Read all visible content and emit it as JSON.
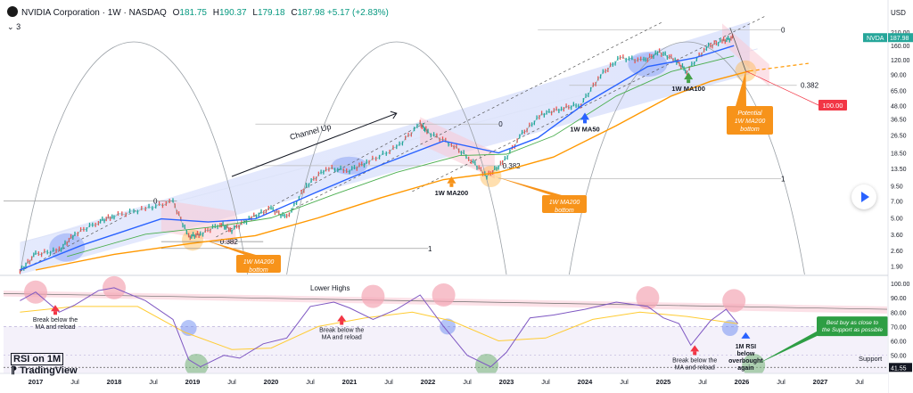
{
  "header": {
    "title": "NVIDIA Corporation · 1W · NASDAQ",
    "open_label": "O",
    "open": "181.75",
    "high_label": "H",
    "high": "190.37",
    "low_label": "L",
    "low": "179.18",
    "close_label": "C",
    "close": "187.98",
    "change": "+5.17 (+2.83%)",
    "sub_indicator": "3"
  },
  "watermark": {
    "rsi_box": "RSI on 1M",
    "brand": "TradingView"
  },
  "chart_data": [
    {
      "type": "line",
      "title": "NVIDIA Corporation · 1W · NASDAQ",
      "price_axis_title": "USD",
      "scale": "log",
      "ylim": [
        1.6,
        280
      ],
      "y_ticks": [
        "210.00",
        "160.00",
        "120.00",
        "90.00",
        "65.00",
        "48.00",
        "36.50",
        "26.50",
        "18.50",
        "13.50",
        "9.50",
        "7.00",
        "5.00",
        "3.60",
        "2.60",
        "1.90"
      ],
      "x_ticks": [
        "2017",
        "Jul",
        "2018",
        "Jul",
        "2019",
        "Jul",
        "2020",
        "Jul",
        "2021",
        "Jul",
        "2022",
        "Jul",
        "2023",
        "Jul",
        "2024",
        "Jul",
        "2025",
        "Jul",
        "2026",
        "Jul",
        "2027",
        "Jul"
      ],
      "price_path": [
        [
          2016.8,
          1.7
        ],
        [
          2017.0,
          2.4
        ],
        [
          2017.3,
          2.6
        ],
        [
          2017.5,
          3.6
        ],
        [
          2017.8,
          4.6
        ],
        [
          2018.0,
          5.2
        ],
        [
          2018.4,
          6.0
        ],
        [
          2018.75,
          6.9
        ],
        [
          2018.95,
          3.4
        ],
        [
          2019.1,
          3.6
        ],
        [
          2019.35,
          4.4
        ],
        [
          2019.5,
          3.9
        ],
        [
          2019.75,
          5.0
        ],
        [
          2020.0,
          6.0
        ],
        [
          2020.2,
          5.0
        ],
        [
          2020.45,
          9.5
        ],
        [
          2020.7,
          13.5
        ],
        [
          2021.0,
          13.0
        ],
        [
          2021.25,
          15.5
        ],
        [
          2021.6,
          20.5
        ],
        [
          2021.9,
          33.0
        ],
        [
          2022.0,
          28.0
        ],
        [
          2022.3,
          22.0
        ],
        [
          2022.55,
          16.0
        ],
        [
          2022.75,
          11.5
        ],
        [
          2022.95,
          15.0
        ],
        [
          2023.2,
          27.0
        ],
        [
          2023.45,
          40.0
        ],
        [
          2023.7,
          45.0
        ],
        [
          2023.95,
          49.0
        ],
        [
          2024.2,
          88.0
        ],
        [
          2024.45,
          125.0
        ],
        [
          2024.75,
          118.0
        ],
        [
          2024.95,
          140.0
        ],
        [
          2025.15,
          120.0
        ],
        [
          2025.3,
          95.0
        ],
        [
          2025.55,
          155.0
        ],
        [
          2025.75,
          175.0
        ],
        [
          2025.9,
          188.0
        ]
      ],
      "series": [
        {
          "name": "1W MA50",
          "color": "#2962ff",
          "values": [
            [
              2016.8,
              1.75
            ],
            [
              2017.6,
              2.9
            ],
            [
              2018.6,
              4.9
            ],
            [
              2019.2,
              4.6
            ],
            [
              2019.8,
              4.9
            ],
            [
              2020.6,
              8.5
            ],
            [
              2021.4,
              14.5
            ],
            [
              2022.2,
              23.5
            ],
            [
              2022.9,
              18.5
            ],
            [
              2023.4,
              25.0
            ],
            [
              2024.0,
              50.0
            ],
            [
              2024.8,
              105.0
            ],
            [
              2025.4,
              125.0
            ],
            [
              2025.9,
              160.0
            ]
          ]
        },
        {
          "name": "1W MA100",
          "color": "#4caf50",
          "values": [
            [
              2017.4,
              2.3
            ],
            [
              2018.4,
              3.6
            ],
            [
              2019.3,
              4.2
            ],
            [
              2020.0,
              5.0
            ],
            [
              2020.8,
              8.0
            ],
            [
              2021.6,
              12.5
            ],
            [
              2022.4,
              17.5
            ],
            [
              2023.0,
              18.0
            ],
            [
              2023.6,
              26.0
            ],
            [
              2024.4,
              58.0
            ],
            [
              2025.1,
              95.0
            ],
            [
              2025.9,
              130.0
            ]
          ]
        },
        {
          "name": "1W MA200",
          "color": "#ff9800",
          "values": [
            [
              2017.0,
              1.75
            ],
            [
              2018.0,
              2.4
            ],
            [
              2019.0,
              3.0
            ],
            [
              2019.8,
              3.5
            ],
            [
              2020.6,
              5.0
            ],
            [
              2021.4,
              7.5
            ],
            [
              2022.2,
              10.8
            ],
            [
              2022.9,
              12.5
            ],
            [
              2023.6,
              17.0
            ],
            [
              2024.4,
              32.0
            ],
            [
              2025.1,
              58.0
            ],
            [
              2025.6,
              78.0
            ],
            [
              2026.1,
              96.0
            ]
          ]
        }
      ],
      "channel": {
        "name": "Channel Up",
        "lower": [
          [
            2016.8,
            1.6
          ],
          [
            2026.1,
            90.0
          ]
        ],
        "upper": [
          [
            2016.8,
            3.0
          ],
          [
            2026.1,
            260.0
          ]
        ]
      },
      "fib_levels": [
        {
          "level": "0",
          "ratio": 0
        },
        {
          "level": "0.382",
          "ratio": 0.382
        },
        {
          "level": "1",
          "ratio": 1
        }
      ],
      "price_labels": [
        {
          "text": "NVDA",
          "value": 187.98,
          "color": "#26a69a"
        },
        {
          "text": "187.98",
          "value": 187.98,
          "color": "#26a69a"
        },
        {
          "text": "100.00",
          "value": 100.0,
          "color": "#f23645"
        }
      ],
      "annotations": [
        {
          "text": "Channel Up"
        },
        {
          "text": "1W MA200 bottom"
        },
        {
          "text": "1W MA200"
        },
        {
          "text": "1W MA200 bottom"
        },
        {
          "text": "1W MA50"
        },
        {
          "text": "1W MA100"
        },
        {
          "text": "Potential 1W MA200 bottom"
        }
      ]
    },
    {
      "type": "line",
      "title": "RSI on 1M",
      "ylim": [
        38,
        105
      ],
      "y_ticks": [
        "100.00",
        "90.00",
        "80.00",
        "70.00",
        "60.00",
        "50.00",
        "41.55"
      ],
      "support_value": 41.55,
      "rsi": [
        [
          2016.8,
          88
        ],
        [
          2017.0,
          94
        ],
        [
          2017.3,
          80
        ],
        [
          2017.5,
          85
        ],
        [
          2017.8,
          95
        ],
        [
          2018.0,
          97
        ],
        [
          2018.4,
          88
        ],
        [
          2018.75,
          75
        ],
        [
          2018.95,
          47
        ],
        [
          2019.1,
          42
        ],
        [
          2019.4,
          50
        ],
        [
          2019.6,
          48
        ],
        [
          2019.9,
          58
        ],
        [
          2020.2,
          62
        ],
        [
          2020.5,
          84
        ],
        [
          2020.8,
          87
        ],
        [
          2021.0,
          83
        ],
        [
          2021.3,
          75
        ],
        [
          2021.6,
          82
        ],
        [
          2021.9,
          92
        ],
        [
          2022.2,
          70
        ],
        [
          2022.5,
          50
        ],
        [
          2022.8,
          42
        ],
        [
          2023.0,
          52
        ],
        [
          2023.3,
          76
        ],
        [
          2023.6,
          78
        ],
        [
          2024.0,
          82
        ],
        [
          2024.4,
          87
        ],
        [
          2024.8,
          84
        ],
        [
          2025.0,
          76
        ],
        [
          2025.2,
          72
        ],
        [
          2025.35,
          57
        ],
        [
          2025.6,
          74
        ],
        [
          2025.8,
          82
        ],
        [
          2025.95,
          72
        ]
      ],
      "ma": [
        [
          2016.8,
          80
        ],
        [
          2017.5,
          84
        ],
        [
          2018.3,
          84
        ],
        [
          2018.9,
          66
        ],
        [
          2019.5,
          54
        ],
        [
          2020.0,
          55
        ],
        [
          2020.6,
          70
        ],
        [
          2021.2,
          76
        ],
        [
          2021.8,
          80
        ],
        [
          2022.3,
          74
        ],
        [
          2022.9,
          60
        ],
        [
          2023.5,
          62
        ],
        [
          2024.1,
          75
        ],
        [
          2024.7,
          80
        ],
        [
          2025.3,
          77
        ],
        [
          2025.95,
          72
        ]
      ],
      "annotations": [
        {
          "text": "Lower Highs"
        },
        {
          "text": "Break below the MA and reload"
        },
        {
          "text": "Break below the MA and reload"
        },
        {
          "text": "Break below the MA and reload"
        },
        {
          "text": "1M RSI below overbought again"
        },
        {
          "text": "Best buy as close to the Support as possible"
        },
        {
          "text": "Support"
        }
      ]
    }
  ]
}
